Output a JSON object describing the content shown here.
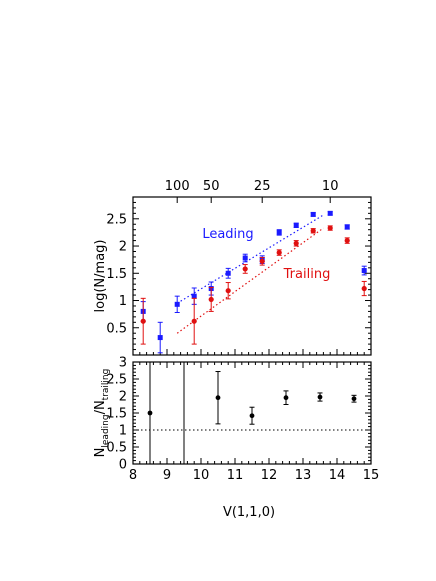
{
  "chart_data": [
    {
      "type": "scatter",
      "title": "",
      "xlabel": "V(1,1,0)",
      "ylabel": "log(N/mag)",
      "xlim": [
        8,
        15
      ],
      "ylim": [
        0,
        2.9
      ],
      "x_ticks": [
        8,
        9,
        10,
        11,
        12,
        13,
        14,
        15
      ],
      "y_ticks": [
        0.5,
        1,
        1.5,
        2,
        2.5
      ],
      "y_tick_labels": [
        "0.5",
        "1",
        "1.5",
        "2",
        "2.5"
      ],
      "top_axis": {
        "tick_labels": [
          "100",
          "50",
          "25",
          "10"
        ],
        "tick_x": [
          9.3,
          10.3,
          11.8,
          13.8
        ]
      },
      "series": [
        {
          "name": "Leading",
          "color": "#1a1aff",
          "marker": "square",
          "x": [
            8.3,
            8.8,
            9.3,
            9.8,
            10.3,
            10.8,
            11.3,
            11.8,
            12.3,
            12.8,
            13.3,
            13.8,
            14.3,
            14.8
          ],
          "y": [
            0.8,
            0.32,
            0.93,
            1.08,
            1.22,
            1.5,
            1.78,
            1.75,
            2.25,
            2.38,
            2.58,
            2.6,
            2.35,
            1.55
          ],
          "err": [
            0.18,
            0.28,
            0.15,
            0.15,
            0.12,
            0.09,
            0.07,
            0.07,
            0.05,
            0.04,
            0.03,
            0.03,
            0.04,
            0.08
          ]
        },
        {
          "name": "Trailing",
          "color": "#e01010",
          "marker": "diamond",
          "x": [
            8.3,
            9.8,
            10.3,
            10.8,
            11.3,
            11.8,
            12.3,
            12.8,
            13.3,
            13.8,
            14.3,
            14.8
          ],
          "y": [
            0.62,
            0.62,
            1.02,
            1.18,
            1.58,
            1.72,
            1.88,
            2.05,
            2.28,
            2.33,
            2.1,
            1.22
          ],
          "err": [
            0.42,
            0.42,
            0.22,
            0.15,
            0.08,
            0.07,
            0.05,
            0.05,
            0.04,
            0.04,
            0.05,
            0.13
          ]
        }
      ],
      "fits": [
        {
          "color": "#1a1aff",
          "x": [
            9.3,
            13.6
          ],
          "y": [
            0.95,
            2.57
          ]
        },
        {
          "color": "#e01010",
          "x": [
            9.3,
            13.6
          ],
          "y": [
            0.4,
            2.33
          ]
        }
      ],
      "legend": [
        {
          "label": "Leading",
          "color": "#1a1aff",
          "x": 11.55,
          "y": 2.13
        },
        {
          "label": "Trailing",
          "color": "#e01010",
          "x": 12.9,
          "y": 1.5
        }
      ]
    },
    {
      "type": "scatter",
      "title": "",
      "xlabel": "V(1,1,0)",
      "ylabel_main": "N",
      "ylabel_sub1": "leading",
      "ylabel_sep": "/N",
      "ylabel_sub2": "trailing",
      "xlim": [
        8,
        15
      ],
      "ylim": [
        0,
        3
      ],
      "x_ticks": [
        8,
        9,
        10,
        11,
        12,
        13,
        14,
        15
      ],
      "x_tick_labels": [
        "8",
        "9",
        "10",
        "11",
        "12",
        "13",
        "14",
        "15"
      ],
      "y_ticks": [
        0,
        0.5,
        1,
        1.5,
        2,
        2.5,
        3
      ],
      "y_tick_labels": [
        "0",
        "0.5",
        "1",
        "1.5",
        "2",
        "2.5",
        "3"
      ],
      "reference_line": {
        "y": 1,
        "style": "dotted"
      },
      "series": [
        {
          "name": "",
          "color": "#000000",
          "x": [
            8.5,
            10.5,
            11.5,
            12.5,
            13.5,
            14.5
          ],
          "y": [
            1.5,
            1.95,
            1.42,
            1.95,
            1.97,
            1.92
          ],
          "err_low": [
            2.0,
            0.77,
            0.25,
            0.2,
            0.12,
            0.1
          ],
          "err_high": [
            2.0,
            0.77,
            0.25,
            0.2,
            0.12,
            0.1
          ],
          "clipped": [
            true,
            false,
            false,
            false,
            false,
            false
          ]
        }
      ],
      "vertical_lines": [
        9.5
      ]
    }
  ]
}
